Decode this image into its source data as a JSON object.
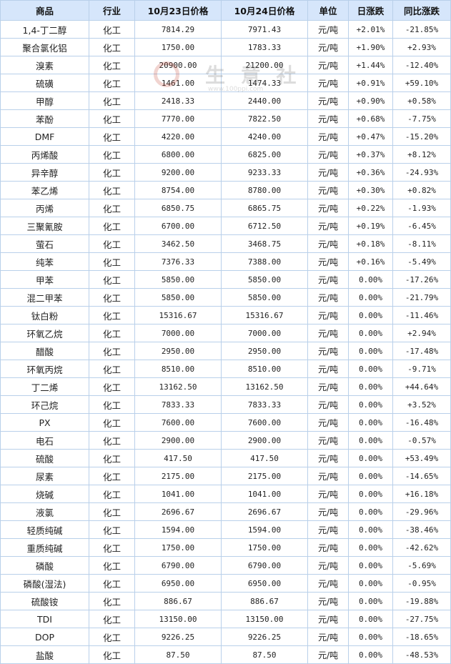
{
  "headers": {
    "product": "商品",
    "industry": "行业",
    "price_oct23": "10月23日价格",
    "price_oct24": "10月24日价格",
    "unit": "单位",
    "daily_change": "日涨跌",
    "yoy_change": "同比涨跌"
  },
  "watermark": {
    "text": "生 意 社",
    "url": "www.100ppi.com"
  },
  "colors": {
    "header_bg": "#d6e6fb",
    "border": "#b9d0ea",
    "name_link": "#23409a",
    "up": "#e10000",
    "down": "#0a8a0a"
  },
  "rows": [
    {
      "name": "1,4-丁二醇",
      "industry": "化工",
      "p1": "7814.29",
      "p2": "7971.43",
      "unit": "元/吨",
      "day": "+2.01%",
      "yoy": "-21.85%"
    },
    {
      "name": "聚合氯化铝",
      "industry": "化工",
      "p1": "1750.00",
      "p2": "1783.33",
      "unit": "元/吨",
      "day": "+1.90%",
      "yoy": "+2.93%"
    },
    {
      "name": "溴素",
      "industry": "化工",
      "p1": "20900.00",
      "p2": "21200.00",
      "unit": "元/吨",
      "day": "+1.44%",
      "yoy": "-12.40%"
    },
    {
      "name": "硫磺",
      "industry": "化工",
      "p1": "1461.00",
      "p2": "1474.33",
      "unit": "元/吨",
      "day": "+0.91%",
      "yoy": "+59.10%"
    },
    {
      "name": "甲醇",
      "industry": "化工",
      "p1": "2418.33",
      "p2": "2440.00",
      "unit": "元/吨",
      "day": "+0.90%",
      "yoy": "+0.58%"
    },
    {
      "name": "苯酚",
      "industry": "化工",
      "p1": "7770.00",
      "p2": "7822.50",
      "unit": "元/吨",
      "day": "+0.68%",
      "yoy": "-7.75%"
    },
    {
      "name": "DMF",
      "industry": "化工",
      "p1": "4220.00",
      "p2": "4240.00",
      "unit": "元/吨",
      "day": "+0.47%",
      "yoy": "-15.20%"
    },
    {
      "name": "丙烯酸",
      "industry": "化工",
      "p1": "6800.00",
      "p2": "6825.00",
      "unit": "元/吨",
      "day": "+0.37%",
      "yoy": "+8.12%"
    },
    {
      "name": "异辛醇",
      "industry": "化工",
      "p1": "9200.00",
      "p2": "9233.33",
      "unit": "元/吨",
      "day": "+0.36%",
      "yoy": "-24.93%"
    },
    {
      "name": "苯乙烯",
      "industry": "化工",
      "p1": "8754.00",
      "p2": "8780.00",
      "unit": "元/吨",
      "day": "+0.30%",
      "yoy": "+0.82%"
    },
    {
      "name": "丙烯",
      "industry": "化工",
      "p1": "6850.75",
      "p2": "6865.75",
      "unit": "元/吨",
      "day": "+0.22%",
      "yoy": "-1.93%"
    },
    {
      "name": "三聚氰胺",
      "industry": "化工",
      "p1": "6700.00",
      "p2": "6712.50",
      "unit": "元/吨",
      "day": "+0.19%",
      "yoy": "-6.45%"
    },
    {
      "name": "萤石",
      "industry": "化工",
      "p1": "3462.50",
      "p2": "3468.75",
      "unit": "元/吨",
      "day": "+0.18%",
      "yoy": "-8.11%"
    },
    {
      "name": "纯苯",
      "industry": "化工",
      "p1": "7376.33",
      "p2": "7388.00",
      "unit": "元/吨",
      "day": "+0.16%",
      "yoy": "-5.49%"
    },
    {
      "name": "甲苯",
      "industry": "化工",
      "p1": "5850.00",
      "p2": "5850.00",
      "unit": "元/吨",
      "day": "0.00%",
      "yoy": "-17.26%"
    },
    {
      "name": "混二甲苯",
      "industry": "化工",
      "p1": "5850.00",
      "p2": "5850.00",
      "unit": "元/吨",
      "day": "0.00%",
      "yoy": "-21.79%"
    },
    {
      "name": "钛白粉",
      "industry": "化工",
      "p1": "15316.67",
      "p2": "15316.67",
      "unit": "元/吨",
      "day": "0.00%",
      "yoy": "-11.46%"
    },
    {
      "name": "环氧乙烷",
      "industry": "化工",
      "p1": "7000.00",
      "p2": "7000.00",
      "unit": "元/吨",
      "day": "0.00%",
      "yoy": "+2.94%"
    },
    {
      "name": "醋酸",
      "industry": "化工",
      "p1": "2950.00",
      "p2": "2950.00",
      "unit": "元/吨",
      "day": "0.00%",
      "yoy": "-17.48%"
    },
    {
      "name": "环氧丙烷",
      "industry": "化工",
      "p1": "8510.00",
      "p2": "8510.00",
      "unit": "元/吨",
      "day": "0.00%",
      "yoy": "-9.71%"
    },
    {
      "name": "丁二烯",
      "industry": "化工",
      "p1": "13162.50",
      "p2": "13162.50",
      "unit": "元/吨",
      "day": "0.00%",
      "yoy": "+44.64%"
    },
    {
      "name": "环己烷",
      "industry": "化工",
      "p1": "7833.33",
      "p2": "7833.33",
      "unit": "元/吨",
      "day": "0.00%",
      "yoy": "+3.52%"
    },
    {
      "name": "PX",
      "industry": "化工",
      "p1": "7600.00",
      "p2": "7600.00",
      "unit": "元/吨",
      "day": "0.00%",
      "yoy": "-16.48%"
    },
    {
      "name": "电石",
      "industry": "化工",
      "p1": "2900.00",
      "p2": "2900.00",
      "unit": "元/吨",
      "day": "0.00%",
      "yoy": "-0.57%"
    },
    {
      "name": "硫酸",
      "industry": "化工",
      "p1": "417.50",
      "p2": "417.50",
      "unit": "元/吨",
      "day": "0.00%",
      "yoy": "+53.49%"
    },
    {
      "name": "尿素",
      "industry": "化工",
      "p1": "2175.00",
      "p2": "2175.00",
      "unit": "元/吨",
      "day": "0.00%",
      "yoy": "-14.65%"
    },
    {
      "name": "烧碱",
      "industry": "化工",
      "p1": "1041.00",
      "p2": "1041.00",
      "unit": "元/吨",
      "day": "0.00%",
      "yoy": "+16.18%"
    },
    {
      "name": "液氯",
      "industry": "化工",
      "p1": "2696.67",
      "p2": "2696.67",
      "unit": "元/吨",
      "day": "0.00%",
      "yoy": "-29.96%"
    },
    {
      "name": "轻质纯碱",
      "industry": "化工",
      "p1": "1594.00",
      "p2": "1594.00",
      "unit": "元/吨",
      "day": "0.00%",
      "yoy": "-38.46%"
    },
    {
      "name": "重质纯碱",
      "industry": "化工",
      "p1": "1750.00",
      "p2": "1750.00",
      "unit": "元/吨",
      "day": "0.00%",
      "yoy": "-42.62%"
    },
    {
      "name": "磷酸",
      "industry": "化工",
      "p1": "6790.00",
      "p2": "6790.00",
      "unit": "元/吨",
      "day": "0.00%",
      "yoy": "-5.69%"
    },
    {
      "name": "磷酸(湿法)",
      "industry": "化工",
      "p1": "6950.00",
      "p2": "6950.00",
      "unit": "元/吨",
      "day": "0.00%",
      "yoy": "-0.95%"
    },
    {
      "name": "硫酸铵",
      "industry": "化工",
      "p1": "886.67",
      "p2": "886.67",
      "unit": "元/吨",
      "day": "0.00%",
      "yoy": "-19.88%"
    },
    {
      "name": "TDI",
      "industry": "化工",
      "p1": "13150.00",
      "p2": "13150.00",
      "unit": "元/吨",
      "day": "0.00%",
      "yoy": "-27.75%"
    },
    {
      "name": "DOP",
      "industry": "化工",
      "p1": "9226.25",
      "p2": "9226.25",
      "unit": "元/吨",
      "day": "0.00%",
      "yoy": "-18.65%"
    },
    {
      "name": "盐酸",
      "industry": "化工",
      "p1": "87.50",
      "p2": "87.50",
      "unit": "元/吨",
      "day": "0.00%",
      "yoy": "-48.53%"
    }
  ]
}
